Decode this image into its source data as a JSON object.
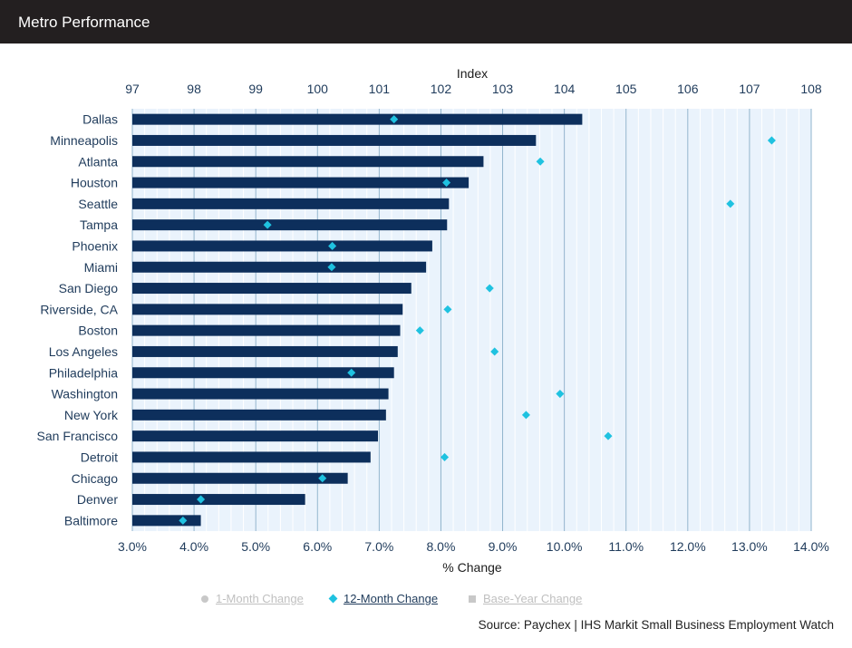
{
  "title": "Metro Performance",
  "source": "Source: Paychex | IHS Markit Small Business Employment Watch",
  "legend": [
    {
      "label": "1-Month Change",
      "marker": "circle-icon",
      "active": false,
      "color": "#c8c8c8"
    },
    {
      "label": "12-Month Change",
      "marker": "diamond-icon",
      "active": true,
      "color": "#1fc2e0"
    },
    {
      "label": "Base-Year Change",
      "marker": "square-icon",
      "active": false,
      "color": "#c8c8c8"
    }
  ],
  "colors": {
    "bar": "#0d2f5c",
    "marker": "#1fc2e0",
    "plot_bg": "#eaf3fc",
    "title_bg": "#231f20"
  },
  "chart_data": {
    "type": "bar",
    "orientation": "horizontal",
    "categories": [
      "Dallas",
      "Minneapolis",
      "Atlanta",
      "Houston",
      "Seattle",
      "Tampa",
      "Phoenix",
      "Miami",
      "San Diego",
      "Riverside, CA",
      "Boston",
      "Los Angeles",
      "Philadelphia",
      "Washington",
      "New York",
      "San Francisco",
      "Detroit",
      "Chicago",
      "Denver",
      "Baltimore"
    ],
    "index_axis": {
      "label": "Index",
      "range": [
        97,
        108
      ],
      "ticks": [
        "97",
        "98",
        "99",
        "100",
        "101",
        "102",
        "103",
        "104",
        "105",
        "106",
        "107",
        "108"
      ]
    },
    "change_axis": {
      "label": "% Change",
      "range": [
        3.0,
        14.0
      ],
      "ticks": [
        "3.0%",
        "4.0%",
        "5.0%",
        "6.0%",
        "7.0%",
        "8.0%",
        "9.0%",
        "10.0%",
        "11.0%",
        "12.0%",
        "13.0%",
        "14.0%"
      ]
    },
    "series": [
      {
        "name": "Index",
        "kind": "bar",
        "axis": "index",
        "values": [
          104.29,
          103.54,
          102.69,
          102.45,
          102.13,
          102.1,
          101.86,
          101.76,
          101.52,
          101.38,
          101.34,
          101.3,
          101.24,
          101.15,
          101.11,
          100.98,
          100.86,
          100.49,
          99.8,
          98.11
        ]
      },
      {
        "name": "12-Month Change",
        "kind": "marker",
        "axis": "change",
        "values": [
          7.24,
          13.36,
          9.61,
          8.09,
          12.69,
          5.19,
          6.24,
          6.23,
          8.79,
          8.11,
          7.66,
          8.87,
          6.55,
          9.93,
          9.38,
          10.71,
          8.06,
          6.08,
          4.11,
          3.82
        ]
      }
    ],
    "grid": true
  }
}
